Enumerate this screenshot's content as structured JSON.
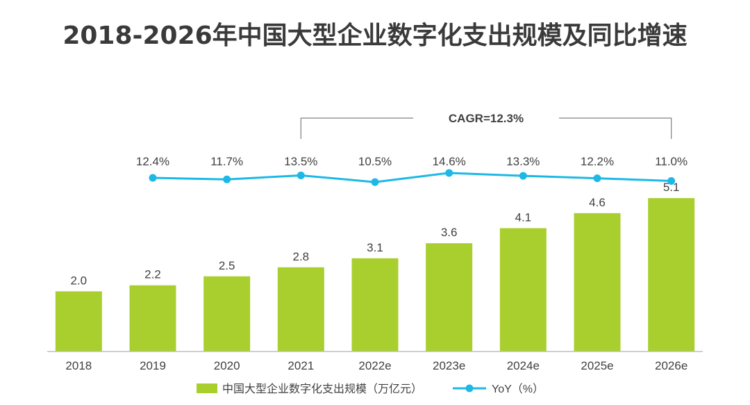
{
  "chart_data": {
    "type": "bar",
    "title": "2018-2026年中国大型企业数字化支出规模及同比增速",
    "categories": [
      "2018",
      "2019",
      "2020",
      "2021",
      "2022e",
      "2023e",
      "2024e",
      "2025e",
      "2026e"
    ],
    "series": [
      {
        "name": "中国大型企业数字化支出规模（万亿元）",
        "type": "bar",
        "values": [
          2.0,
          2.2,
          2.5,
          2.8,
          3.1,
          3.6,
          4.1,
          4.6,
          5.1
        ],
        "labels": [
          "2.0",
          "2.2",
          "2.5",
          "2.8",
          "3.1",
          "3.6",
          "4.1",
          "4.6",
          "5.1"
        ]
      },
      {
        "name": "YoY（%）",
        "type": "line",
        "values": [
          null,
          12.4,
          11.7,
          13.5,
          10.5,
          14.6,
          13.3,
          12.2,
          11.0
        ],
        "labels": [
          "",
          "12.4%",
          "11.7%",
          "13.5%",
          "10.5%",
          "14.6%",
          "13.3%",
          "12.2%",
          "11.0%"
        ]
      }
    ],
    "annotation": "CAGR=12.3%",
    "grid": false,
    "legend_position": "bottom",
    "colors": {
      "bar": "#a8cf2e",
      "line": "#1cb9e6",
      "text": "#404040",
      "axis": "#bfbfbf"
    }
  }
}
